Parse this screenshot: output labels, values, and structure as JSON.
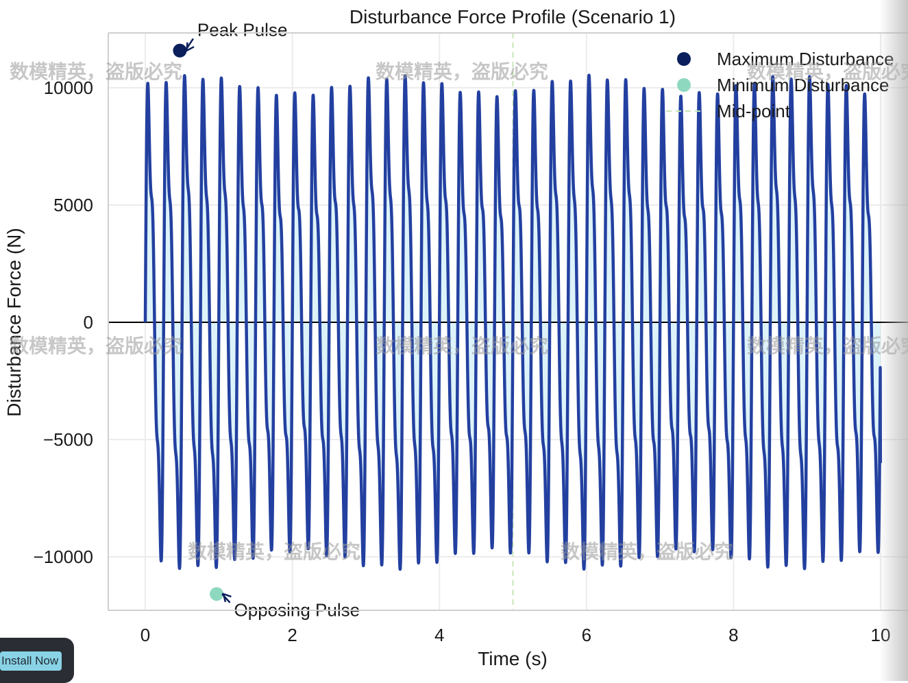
{
  "chart_data": {
    "type": "line",
    "title": "Disturbance Force Profile (Scenario 1)",
    "xlabel": "Time (s)",
    "ylabel": "Disturbance Force (N)",
    "xlim": [
      -0.5,
      10.5
    ],
    "ylim": [
      -12500,
      12500
    ],
    "x_ticks": [
      0,
      2,
      4,
      6,
      8,
      10
    ],
    "y_ticks": [
      10000,
      5000,
      0,
      -5000,
      -10000
    ],
    "x_tick_labels": [
      "0",
      "2",
      "4",
      "6",
      "8",
      "10"
    ],
    "y_tick_labels": [
      "10000",
      "5000",
      "0",
      "−5000",
      "−10000"
    ],
    "grid": true,
    "series": [
      {
        "name": "Disturbance Force",
        "color": "#2340a0",
        "fill_color": "#cfeef8",
        "generator": {
          "description": "periodic pulse train, period 0.5 s, sampled every 0.002 s",
          "period": 0.5,
          "t_start": 0,
          "t_end": 10,
          "components": [
            {
              "amplitude": 8500,
              "frequency": 4
            },
            {
              "amplitude": 2600,
              "frequency": 8
            },
            {
              "amplitude": 2000,
              "frequency": 12
            },
            {
              "amplitude": 200,
              "frequency": 2
            }
          ],
          "end_value": -6000
        }
      }
    ],
    "horizontal_lines": [
      {
        "y": 0,
        "color": "#000000"
      }
    ],
    "vertical_lines": [
      {
        "x": 5,
        "color": "#c8e6b4",
        "style": "dashed",
        "label": "Mid-point"
      }
    ],
    "markers": [
      {
        "name": "Maximum Disturbance",
        "x": 0.47,
        "y": 11000,
        "color": "#0b1f5c"
      },
      {
        "name": "Minimum Disturbance",
        "x": 0.97,
        "y": -11000,
        "color": "#8fd8c0"
      }
    ],
    "annotations": [
      {
        "text": "Peak Pulse",
        "x": 0.47,
        "y": 11000,
        "text_x": 0.67,
        "text_y": 11800
      },
      {
        "text": "Opposing Pulse",
        "x": 0.97,
        "y": -11000,
        "text_x": 1.17,
        "text_y": -11600
      }
    ],
    "legend": {
      "position": "top-right",
      "entries": [
        {
          "label": "Maximum Disturbance",
          "kind": "dot",
          "color": "#0b1f5c"
        },
        {
          "label": "Minimum Disturbance",
          "kind": "dot",
          "color": "#8fd8c0"
        },
        {
          "label": "Mid-point",
          "kind": "dash",
          "color": "#c8e6b4"
        }
      ]
    },
    "watermark_text": "数模精英，盗版必究"
  },
  "install_button": {
    "label": "Install Now"
  }
}
